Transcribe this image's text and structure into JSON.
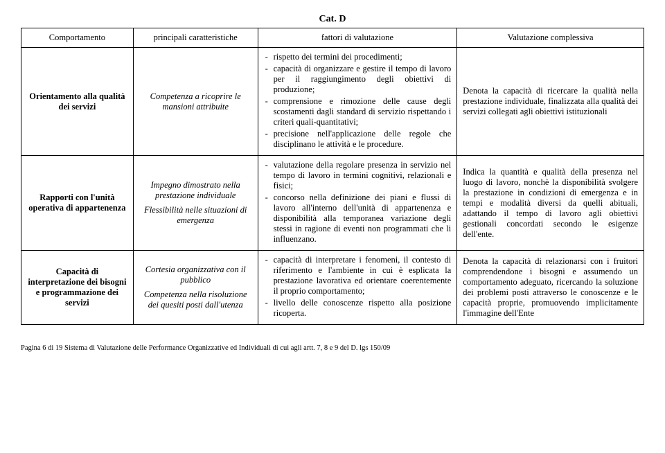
{
  "category": "Cat. D",
  "headers": {
    "col1": "Comportamento",
    "col2": "principali caratteristiche",
    "col3": "fattori di valutazione",
    "col4": "Valutazione complessiva"
  },
  "rows": [
    {
      "behavior": "Orientamento alla qualità dei servizi",
      "characteristics": [
        "Competenza a ricoprire le mansioni attribuite"
      ],
      "factors": [
        "rispetto dei termini dei procedimenti;",
        "capacità di organizzare e gestire il tempo di lavoro per il raggiungimento degli obiettivi di produzione;",
        "comprensione e rimozione delle cause degli scostamenti dagli standard di servizio rispettando i criteri quali-quantitativi;",
        "precisione nell'applicazione delle regole che disciplinano le attività e le procedure."
      ],
      "evaluation": "Denota la capacità di ricercare la qualità nella prestazione individuale, finalizzata alla qualità dei servizi collegati agli obiettivi istituzionali"
    },
    {
      "behavior": "Rapporti con l'unità operativa di appartenenza",
      "characteristics": [
        "Impegno dimostrato nella prestazione individuale",
        "Flessibilità nelle situazioni di emergenza"
      ],
      "factors": [
        "valutazione della regolare presenza in servizio nel tempo di lavoro in termini cognitivi, relazionali e fisici;",
        "concorso nella definizione dei piani e flussi di lavoro all'interno dell'unità di appartenenza e disponibilità alla temporanea variazione degli stessi in ragione di eventi non programmati che li influenzano."
      ],
      "evaluation": "Indica la quantità e qualità della presenza nel luogo di lavoro, nonchè la disponibilità svolgere la prestazione in condizioni di emergenza e in tempi e modalità diversi da quelli abituali, adattando il tempo di lavoro agli obiettivi gestionali concordati secondo le esigenze dell'ente."
    },
    {
      "behavior": "Capacità di interpretazione dei bisogni e programmazione dei servizi",
      "characteristics": [
        "Cortesia organizzativa con il pubblico",
        "Competenza nella risoluzione dei quesiti posti dall'utenza"
      ],
      "factors": [
        "capacità di interpretare i fenomeni, il contesto di riferimento e l'ambiente in cui è esplicata la prestazione lavorativa ed orientare coerentemente il proprio comportamento;",
        "livello delle conoscenze rispetto alla posizione ricoperta."
      ],
      "evaluation": "Denota la capacità di relazionarsi con i fruitori comprendendone i bisogni e assumendo un comportamento adeguato, ricercando la soluzione dei problemi posti attraverso le conoscenze e le capacità proprie, promuovendo implicitamente l'immagine dell'Ente"
    }
  ],
  "footer": "Pagina 6 di 19  Sistema di Valutazione delle Performance Organizzative ed Individuali di cui agli artt. 7, 8 e 9 del D. lgs 150/09"
}
